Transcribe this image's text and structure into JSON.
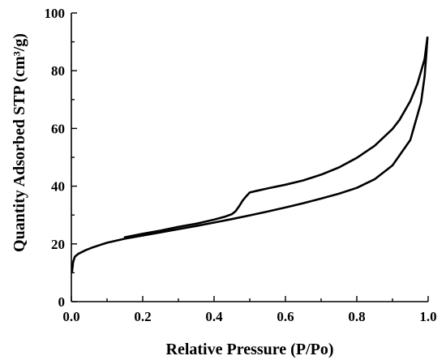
{
  "chart_data": {
    "type": "line",
    "title": "",
    "xlabel": "Relative Pressure (P/Po)",
    "ylabel": "Quantity Adsorbed STP (cm³/g)",
    "xlim": [
      0.0,
      1.0
    ],
    "ylim": [
      0,
      100
    ],
    "x_ticks": [
      "0.0",
      "0.2",
      "0.4",
      "0.6",
      "0.8",
      "1.0"
    ],
    "y_ticks": [
      "0",
      "20",
      "40",
      "60",
      "80",
      "100"
    ],
    "x_tick_values": [
      0.0,
      0.2,
      0.4,
      0.6,
      0.8,
      1.0
    ],
    "y_tick_values": [
      0,
      20,
      40,
      60,
      80,
      100
    ],
    "grid": false,
    "legend": "none",
    "series": [
      {
        "color": "#000000",
        "points": [
          [
            0.002,
            10.5
          ],
          [
            0.005,
            13.8
          ],
          [
            0.01,
            15.6
          ],
          [
            0.02,
            16.6
          ],
          [
            0.04,
            17.8
          ],
          [
            0.06,
            18.8
          ],
          [
            0.08,
            19.6
          ],
          [
            0.1,
            20.4
          ],
          [
            0.15,
            21.8
          ],
          [
            0.2,
            22.9
          ],
          [
            0.25,
            24.0
          ],
          [
            0.3,
            25.1
          ],
          [
            0.35,
            26.2
          ],
          [
            0.4,
            27.4
          ],
          [
            0.45,
            28.6
          ],
          [
            0.5,
            29.9
          ],
          [
            0.55,
            31.2
          ],
          [
            0.6,
            32.6
          ],
          [
            0.65,
            34.1
          ],
          [
            0.7,
            35.7
          ],
          [
            0.75,
            37.4
          ],
          [
            0.8,
            39.4
          ],
          [
            0.85,
            42.4
          ],
          [
            0.9,
            47.2
          ],
          [
            0.95,
            56.0
          ],
          [
            0.98,
            69.0
          ],
          [
            0.99,
            78.0
          ],
          [
            0.995,
            86.0
          ],
          [
            0.998,
            91.5
          ]
        ]
      },
      {
        "color": "#000000",
        "points": [
          [
            0.998,
            91.5
          ],
          [
            0.99,
            84.0
          ],
          [
            0.97,
            75.5
          ],
          [
            0.95,
            69.5
          ],
          [
            0.92,
            63.0
          ],
          [
            0.9,
            59.8
          ],
          [
            0.85,
            54.0
          ],
          [
            0.8,
            49.8
          ],
          [
            0.75,
            46.5
          ],
          [
            0.7,
            44.0
          ],
          [
            0.65,
            42.0
          ],
          [
            0.6,
            40.5
          ],
          [
            0.55,
            39.2
          ],
          [
            0.52,
            38.4
          ],
          [
            0.5,
            37.8
          ],
          [
            0.49,
            36.5
          ],
          [
            0.48,
            35.0
          ],
          [
            0.47,
            33.0
          ],
          [
            0.46,
            31.3
          ],
          [
            0.45,
            30.3
          ],
          [
            0.43,
            29.4
          ],
          [
            0.4,
            28.4
          ],
          [
            0.35,
            27.0
          ],
          [
            0.3,
            25.9
          ],
          [
            0.25,
            24.6
          ],
          [
            0.2,
            23.5
          ],
          [
            0.15,
            22.3
          ]
        ]
      }
    ]
  }
}
